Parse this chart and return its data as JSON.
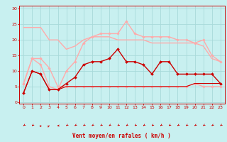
{
  "bg_color": "#c8f0f0",
  "grid_color": "#a8dada",
  "xlabel": "Vent moyen/en rafales ( km/h )",
  "x_ticks": [
    0,
    1,
    2,
    3,
    4,
    5,
    6,
    7,
    8,
    9,
    10,
    11,
    12,
    13,
    14,
    15,
    16,
    17,
    18,
    19,
    20,
    21,
    22,
    23
  ],
  "y_ticks": [
    0,
    5,
    10,
    15,
    20,
    25,
    30
  ],
  "ylim": [
    -4,
    31
  ],
  "xlim": [
    -0.5,
    23.5
  ],
  "series": [
    {
      "color": "#ffaaaa",
      "lw": 1.0,
      "marker": null,
      "x": [
        0,
        1,
        2,
        3,
        4,
        5,
        6,
        7,
        8,
        9,
        10,
        11,
        12,
        13,
        14,
        15,
        16,
        17,
        18,
        19,
        20,
        21,
        22,
        23
      ],
      "y": [
        24,
        24,
        24,
        20,
        20,
        17,
        18,
        20,
        21,
        21,
        21,
        20,
        20,
        20,
        20,
        19,
        19,
        19,
        19,
        19,
        19,
        18,
        14,
        13
      ]
    },
    {
      "color": "#ffaaaa",
      "lw": 1.0,
      "marker": "D",
      "ms": 1.8,
      "x": [
        0,
        1,
        2,
        3,
        4,
        5,
        6,
        7,
        8,
        9,
        10,
        11,
        12,
        13,
        14,
        15,
        16,
        17,
        18,
        19,
        20,
        21,
        22,
        23
      ],
      "y": [
        6,
        14,
        12,
        5,
        4,
        10,
        13,
        19,
        21,
        22,
        22,
        22,
        26,
        22,
        21,
        21,
        21,
        21,
        20,
        20,
        19,
        20,
        15,
        13
      ]
    },
    {
      "color": "#ffaaaa",
      "lw": 1.0,
      "marker": "D",
      "ms": 1.8,
      "x": [
        0,
        1,
        2,
        3,
        4,
        5,
        6,
        7,
        8,
        9,
        10,
        11,
        12,
        13,
        14,
        15,
        16,
        17,
        18,
        19,
        20,
        21,
        22,
        23
      ],
      "y": [
        6,
        14,
        14,
        11,
        5,
        5,
        5,
        5,
        5,
        5,
        5,
        5,
        5,
        5,
        5,
        5,
        5,
        5,
        5,
        5,
        6,
        5,
        5,
        5
      ]
    },
    {
      "color": "#cc0000",
      "lw": 1.0,
      "marker": "D",
      "ms": 2.0,
      "x": [
        0,
        1,
        2,
        3,
        4,
        5,
        6,
        7,
        8,
        9,
        10,
        11,
        12,
        13,
        14,
        15,
        16,
        17,
        18,
        19,
        20,
        21,
        22,
        23
      ],
      "y": [
        3,
        10,
        9,
        4,
        4,
        6,
        8,
        12,
        13,
        13,
        14,
        17,
        13,
        13,
        12,
        9,
        13,
        13,
        9,
        9,
        9,
        9,
        9,
        6
      ]
    },
    {
      "color": "#cc0000",
      "lw": 0.8,
      "marker": null,
      "x": [
        0,
        1,
        2,
        3,
        4,
        5,
        6,
        7,
        8,
        9,
        10,
        11,
        12,
        13,
        14,
        15,
        16,
        17,
        18,
        19,
        20,
        21,
        22,
        23
      ],
      "y": [
        3,
        10,
        9,
        4,
        4,
        5,
        5,
        5,
        5,
        5,
        5,
        5,
        5,
        5,
        5,
        5,
        5,
        5,
        5,
        5,
        6,
        6,
        6,
        6
      ]
    }
  ],
  "wind_angles": [
    225,
    225,
    200,
    45,
    270,
    225,
    225,
    225,
    225,
    225,
    225,
    225,
    225,
    225,
    225,
    225,
    225,
    225,
    225,
    225,
    225,
    225,
    225,
    225
  ]
}
